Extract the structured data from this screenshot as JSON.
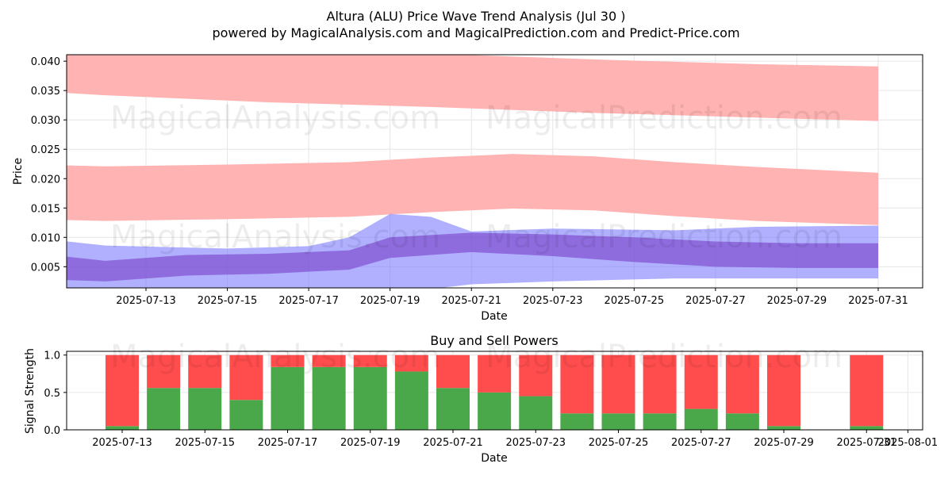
{
  "title": "Altura (ALU) Price Wave Trend Analysis (Jul 30 )",
  "subtitle": "powered by MagicalAnalysis.com and MagicalPrediction.com and Predict-Price.com",
  "watermarks": [
    "MagicalAnalysis.com",
    "MagicalPrediction.com"
  ],
  "colors": {
    "sell": "#ff4d4d",
    "buy": "#4aa84a",
    "red_band": "#ffb3b3",
    "blue_band": "#6f6fff",
    "purple_core": "#7a3fc8"
  },
  "chart_data": [
    {
      "type": "area",
      "title": "",
      "xlabel": "Date",
      "ylabel": "Price",
      "ylim": [
        0.0014,
        0.0411
      ],
      "x_range": [
        "2025-07-10",
        "2025-07-31"
      ],
      "x_ticks": [
        "2025-07-13",
        "2025-07-15",
        "2025-07-17",
        "2025-07-19",
        "2025-07-21",
        "2025-07-23",
        "2025-07-25",
        "2025-07-27",
        "2025-07-29",
        "2025-07-31"
      ],
      "y_ticks": [
        "0.005",
        "0.010",
        "0.015",
        "0.020",
        "0.025",
        "0.030",
        "0.035",
        "0.040"
      ],
      "grid": true,
      "series": [
        {
          "style": "red-band",
          "x": [
            "2025-07-10",
            "2025-07-12",
            "2025-07-16",
            "2025-07-20",
            "2025-07-24",
            "2025-07-28",
            "2025-07-31"
          ],
          "upper": [
            0.0413,
            0.0413,
            0.0413,
            0.0413,
            0.0403,
            0.0395,
            0.0391
          ],
          "lower": [
            0.035,
            0.0342,
            0.033,
            0.0322,
            0.0312,
            0.0304,
            0.0298
          ]
        },
        {
          "style": "red-band",
          "x": [
            "2025-07-10",
            "2025-07-12",
            "2025-07-15",
            "2025-07-18",
            "2025-07-20",
            "2025-07-22",
            "2025-07-24",
            "2025-07-26",
            "2025-07-28",
            "2025-07-31"
          ],
          "upper": [
            0.0224,
            0.0221,
            0.0224,
            0.0228,
            0.0236,
            0.0242,
            0.0238,
            0.0228,
            0.022,
            0.021
          ],
          "lower": [
            0.0131,
            0.0128,
            0.0131,
            0.0135,
            0.0143,
            0.0149,
            0.0146,
            0.0136,
            0.0128,
            0.0121
          ]
        },
        {
          "style": "blue-band",
          "x": [
            "2025-07-10",
            "2025-07-12",
            "2025-07-15",
            "2025-07-17",
            "2025-07-18",
            "2025-07-19",
            "2025-07-20",
            "2025-07-21",
            "2025-07-23",
            "2025-07-26",
            "2025-07-28",
            "2025-07-31"
          ],
          "upper": [
            0.0101,
            0.0086,
            0.0081,
            0.0085,
            0.01,
            0.014,
            0.0135,
            0.011,
            0.0115,
            0.0112,
            0.0118,
            0.012
          ],
          "lower": [
            0.0012,
            0.0012,
            0.0012,
            0.0012,
            0.0012,
            0.0012,
            0.0012,
            0.002,
            0.0025,
            0.003,
            0.003,
            0.003
          ]
        },
        {
          "style": "purple-core",
          "x": [
            "2025-07-10",
            "2025-07-12",
            "2025-07-14",
            "2025-07-16",
            "2025-07-18",
            "2025-07-19",
            "2025-07-21",
            "2025-07-23",
            "2025-07-25",
            "2025-07-27",
            "2025-07-29",
            "2025-07-31"
          ],
          "upper": [
            0.0075,
            0.006,
            0.007,
            0.0072,
            0.0078,
            0.01,
            0.0108,
            0.0105,
            0.01,
            0.0093,
            0.009,
            0.009
          ],
          "lower": [
            0.003,
            0.0025,
            0.0035,
            0.0038,
            0.0045,
            0.0065,
            0.0075,
            0.0068,
            0.0058,
            0.005,
            0.0048,
            0.0048
          ]
        }
      ]
    },
    {
      "type": "bar",
      "title": "Buy and Sell Powers",
      "xlabel": "Date",
      "ylabel": "Signal Strength",
      "ylim": [
        0,
        1.05
      ],
      "y_ticks": [
        "0.0",
        "0.5",
        "1.0"
      ],
      "x_ticks": [
        "2025-07-13",
        "2025-07-15",
        "2025-07-17",
        "2025-07-19",
        "2025-07-21",
        "2025-07-23",
        "2025-07-25",
        "2025-07-27",
        "2025-07-29",
        "2025-07-31",
        "2025-08-01"
      ],
      "categories": [
        "2025-07-13",
        "2025-07-14",
        "2025-07-15",
        "2025-07-16",
        "2025-07-17",
        "2025-07-18",
        "2025-07-19",
        "2025-07-20",
        "2025-07-21",
        "2025-07-22",
        "2025-07-23",
        "2025-07-24",
        "2025-07-25",
        "2025-07-26",
        "2025-07-27",
        "2025-07-28",
        "2025-07-29",
        "2025-07-31"
      ],
      "series": [
        {
          "values": [
            0.05,
            0.56,
            0.56,
            0.4,
            0.84,
            0.84,
            0.84,
            0.78,
            0.56,
            0.5,
            0.45,
            0.22,
            0.22,
            0.22,
            0.28,
            0.22,
            0.05,
            0.05
          ]
        },
        {
          "values": [
            0.95,
            0.44,
            0.44,
            0.6,
            0.16,
            0.16,
            0.16,
            0.22,
            0.44,
            0.5,
            0.55,
            0.78,
            0.78,
            0.78,
            0.72,
            0.78,
            0.95,
            0.95
          ]
        }
      ]
    }
  ]
}
